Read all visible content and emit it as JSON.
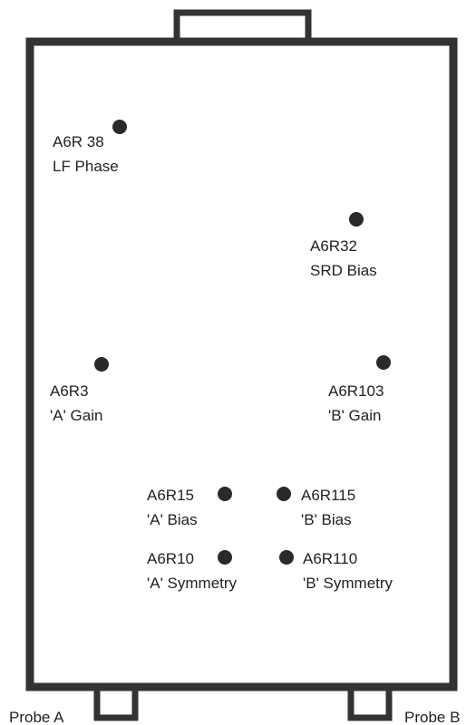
{
  "components": [
    {
      "name": "A6R 38",
      "function": "LF Phase"
    },
    {
      "name": "A6R32",
      "function": "SRD Bias"
    },
    {
      "name": "A6R3",
      "function": "'A' Gain"
    },
    {
      "name": "A6R103",
      "function": "'B' Gain"
    },
    {
      "name": "A6R15",
      "function": "'A' Bias"
    },
    {
      "name": "A6R115",
      "function": "'B' Bias"
    },
    {
      "name": "A6R10",
      "function": "'A' Symmetry"
    },
    {
      "name": "A6R110",
      "function": "'B' Symmetry"
    }
  ],
  "probes": [
    "Probe A",
    "Probe B"
  ]
}
